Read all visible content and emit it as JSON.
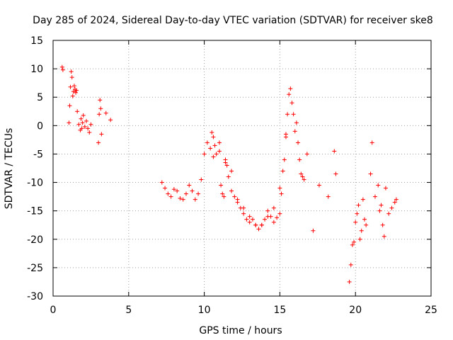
{
  "chart_data": {
    "type": "scatter",
    "title": "Day 285 of 2024, Sidereal Day-to-day VTEC variation (SDTVAR) for receiver ske8",
    "xlabel": "GPS time / hours",
    "ylabel": "SDTVAR / TECUs",
    "xlim": [
      0,
      25
    ],
    "ylim": [
      -30,
      15
    ],
    "xticks": [
      0,
      5,
      10,
      15,
      20,
      25
    ],
    "yticks": [
      15,
      10,
      5,
      0,
      -5,
      -10,
      -15,
      -20,
      -25,
      -30
    ],
    "xtick_labels": [
      "0",
      "5",
      "10",
      "15",
      "20",
      "25"
    ],
    "ytick_labels": [
      "15",
      "10",
      "5",
      "0",
      "-5",
      "-10",
      "-15",
      "-20",
      "-25",
      "-30"
    ],
    "grid": true,
    "marker": "plus",
    "series": [
      {
        "name": "SDTVAR",
        "color": "#ff0000",
        "x": [
          0.6,
          0.65,
          1.05,
          1.1,
          1.15,
          1.2,
          1.25,
          1.3,
          1.35,
          1.4,
          1.45,
          1.5,
          1.55,
          1.6,
          1.7,
          1.8,
          1.85,
          1.9,
          1.95,
          2.0,
          2.1,
          2.2,
          2.3,
          2.4,
          2.5,
          3.0,
          3.05,
          3.1,
          3.15,
          3.2,
          3.5,
          3.8,
          7.2,
          7.4,
          7.6,
          7.8,
          8.0,
          8.2,
          8.4,
          8.6,
          8.8,
          9.0,
          9.2,
          9.4,
          9.6,
          9.8,
          10.0,
          10.2,
          10.4,
          10.5,
          10.6,
          10.7,
          10.8,
          11.0,
          11.1,
          11.2,
          11.3,
          11.4,
          11.5,
          11.6,
          11.8,
          12.0,
          12.2,
          12.4,
          12.6,
          12.8,
          13.0,
          13.2,
          13.4,
          13.6,
          13.8,
          14.0,
          14.2,
          14.4,
          14.6,
          14.8,
          15.0,
          15.1,
          15.2,
          15.3,
          15.4,
          15.5,
          15.6,
          15.7,
          15.8,
          15.9,
          16.0,
          16.1,
          16.2,
          16.3,
          16.4,
          16.5,
          16.6,
          16.8,
          17.2,
          17.6,
          18.2,
          18.6,
          18.7,
          19.6,
          19.7,
          19.8,
          19.9,
          20.0,
          20.1,
          20.2,
          20.3,
          20.4,
          20.5,
          20.6,
          20.7,
          21.0,
          21.1,
          21.3,
          21.5,
          21.6,
          21.7,
          21.8,
          21.9,
          22.0,
          22.2,
          22.4,
          22.6,
          22.7,
          10.6,
          11.0,
          11.4,
          11.8,
          12.2,
          12.6,
          13.0,
          13.4,
          13.8,
          14.2,
          14.6,
          15.0,
          15.4
        ],
        "y": [
          10.3,
          9.8,
          0.5,
          3.5,
          6.8,
          9.5,
          8.5,
          5.2,
          6.0,
          7.0,
          6.4,
          5.8,
          6.2,
          2.5,
          0.2,
          -0.8,
          1.2,
          -0.5,
          0.5,
          1.8,
          -0.2,
          0.8,
          -0.5,
          -1.2,
          0.2,
          -3.0,
          2.0,
          4.5,
          3.0,
          -1.5,
          2.2,
          1.0,
          -10.0,
          -11.0,
          -12.0,
          -12.5,
          -11.2,
          -11.5,
          -12.8,
          -13.0,
          -12.0,
          -10.5,
          -11.5,
          -13.0,
          -12.0,
          -9.5,
          -5.0,
          -3.0,
          -4.0,
          -1.2,
          -2.0,
          -3.5,
          -5.0,
          -4.5,
          -10.5,
          -12.0,
          -12.5,
          -6.0,
          -7.0,
          -9.0,
          -11.5,
          -12.5,
          -13.5,
          -14.5,
          -15.5,
          -16.5,
          -17.0,
          -16.5,
          -17.5,
          -18.2,
          -17.5,
          -16.5,
          -15.0,
          -16.0,
          -17.0,
          -16.2,
          -15.5,
          -12.0,
          -8.0,
          -6.0,
          -2.0,
          2.0,
          5.5,
          6.5,
          4.0,
          2.0,
          -1.0,
          0.5,
          -3.0,
          -6.0,
          -8.5,
          -9.0,
          -9.5,
          -5.0,
          -18.5,
          -10.5,
          -12.5,
          -4.5,
          -8.5,
          -27.5,
          -24.5,
          -21.0,
          -20.5,
          -17.0,
          -15.5,
          -14.0,
          -20.0,
          -18.5,
          -13.0,
          -16.5,
          -17.5,
          -8.5,
          -3.0,
          -12.5,
          -10.5,
          -15.0,
          -14.0,
          -17.5,
          -19.5,
          -11.0,
          -15.5,
          -14.5,
          -13.5,
          -13.0,
          -5.5,
          -3.0,
          -6.5,
          -8.0,
          -13.0,
          -14.5,
          -16.0,
          -17.5,
          -17.5,
          -16.0,
          -14.5,
          -11.0,
          -1.5
        ]
      }
    ]
  }
}
